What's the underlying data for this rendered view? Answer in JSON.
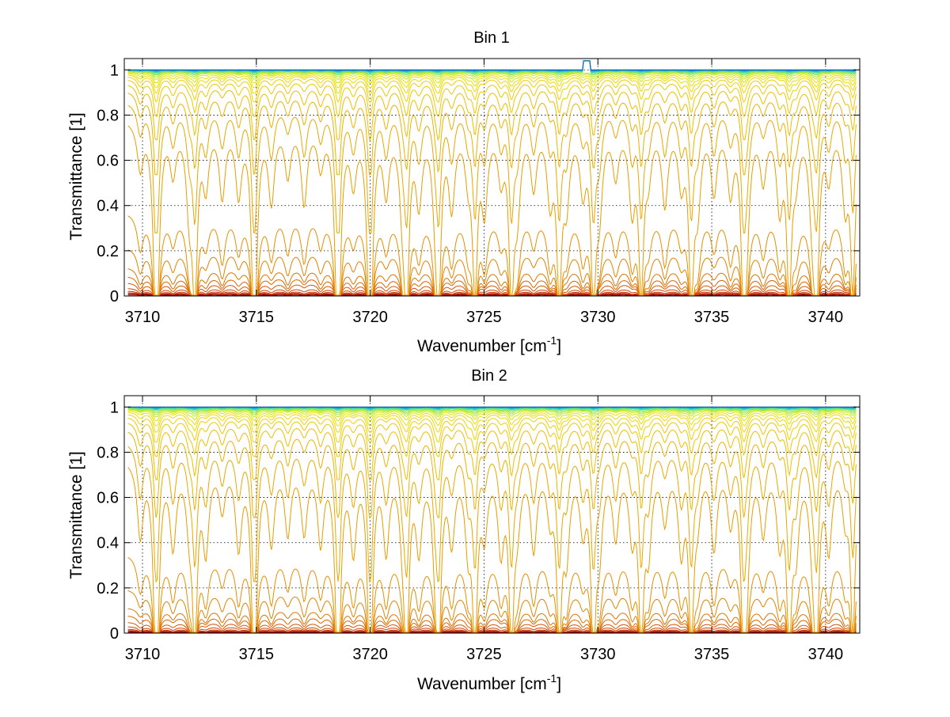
{
  "chart_data": [
    {
      "type": "line",
      "title": "Bin 1",
      "xlabel": "Wavenumber [cm",
      "xlabel_sup": "-1",
      "xlabel_close": "]",
      "ylabel": "Transmittance [1]",
      "xlim": [
        3709.2,
        3741.5
      ],
      "ylim": [
        0,
        1.05
      ],
      "x_ticks": [
        3710,
        3715,
        3720,
        3725,
        3730,
        3735,
        3740
      ],
      "x_tick_labels": [
        "3710",
        "3715",
        "3720",
        "3725",
        "3730",
        "3735",
        "3740"
      ],
      "y_ticks": [
        0,
        0.2,
        0.4,
        0.6,
        0.8,
        1
      ],
      "y_tick_labels": [
        "0",
        "0.2",
        "0.4",
        "0.6",
        "0.8",
        "1"
      ],
      "grid": true,
      "legend": "none",
      "series_count": 30,
      "series_baselines": [
        0.005,
        0.01,
        0.015,
        0.022,
        0.035,
        0.06,
        0.09,
        0.13,
        0.22,
        0.38,
        0.56,
        0.72,
        0.82,
        0.88,
        0.92,
        0.945,
        0.96,
        0.97,
        0.978,
        0.984,
        0.988,
        0.991,
        0.993,
        0.995,
        0.996,
        0.997,
        0.998,
        0.998,
        0.999,
        1.0
      ],
      "colors": [
        "#8b0000",
        "#a40e00",
        "#b81d00",
        "#c83000",
        "#d44200",
        "#d95400",
        "#dd6400",
        "#e07400",
        "#e38200",
        "#e68f00",
        "#e89c00",
        "#eaa700",
        "#ecb200",
        "#eebd00",
        "#efc700",
        "#f0d000",
        "#efd800",
        "#e8e000",
        "#d8e400",
        "#c2e618",
        "#a8e830",
        "#88e652",
        "#68e276",
        "#4cdc98",
        "#3ad2b4",
        "#2ec4ca",
        "#26b2d6",
        "#1e9cd8",
        "#1682cc",
        "#0f5fb0"
      ]
    },
    {
      "type": "line",
      "title": "Bin 2",
      "xlabel": "Wavenumber [cm",
      "xlabel_sup": "-1",
      "xlabel_close": "]",
      "ylabel": "Transmittance [1]",
      "xlim": [
        3709.2,
        3741.5
      ],
      "ylim": [
        0,
        1.05
      ],
      "x_ticks": [
        3710,
        3715,
        3720,
        3725,
        3730,
        3735,
        3740
      ],
      "x_tick_labels": [
        "3710",
        "3715",
        "3720",
        "3725",
        "3730",
        "3735",
        "3740"
      ],
      "y_ticks": [
        0,
        0.2,
        0.4,
        0.6,
        0.8,
        1
      ],
      "y_tick_labels": [
        "0",
        "0.2",
        "0.4",
        "0.6",
        "0.8",
        "1"
      ],
      "grid": true,
      "legend": "none",
      "series_count": 30,
      "series_baselines": [
        0.004,
        0.008,
        0.012,
        0.018,
        0.03,
        0.05,
        0.08,
        0.115,
        0.2,
        0.36,
        0.54,
        0.7,
        0.81,
        0.875,
        0.915,
        0.94,
        0.957,
        0.968,
        0.977,
        0.983,
        0.987,
        0.99,
        0.993,
        0.995,
        0.996,
        0.997,
        0.998,
        0.998,
        0.999,
        1.0
      ],
      "colors": [
        "#8b0000",
        "#a40e00",
        "#b81d00",
        "#c83000",
        "#d44200",
        "#d95400",
        "#dd6400",
        "#e07400",
        "#e38200",
        "#e68f00",
        "#e89c00",
        "#eaa700",
        "#ecb200",
        "#eebd00",
        "#efc700",
        "#f0d000",
        "#efd800",
        "#e8e000",
        "#d8e400",
        "#c2e618",
        "#a8e830",
        "#88e652",
        "#68e276",
        "#4cdc98",
        "#3ad2b4",
        "#2ec4ca",
        "#26b2d6",
        "#1e9cd8",
        "#1682cc",
        "#0f5fb0"
      ]
    }
  ]
}
